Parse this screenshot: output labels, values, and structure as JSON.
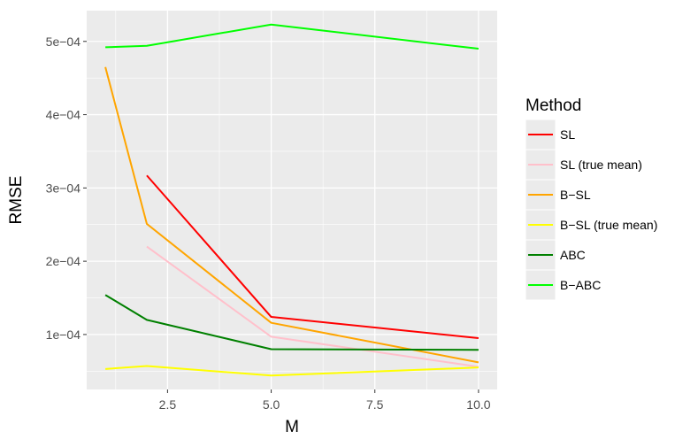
{
  "chart_data": {
    "type": "line",
    "xlabel": "M",
    "ylabel": "RMSE",
    "xlim": [
      0.55,
      10.45
    ],
    "ylim": [
      2.5e-05,
      0.000542
    ],
    "x_ticks": [
      2.5,
      5.0,
      7.5,
      10.0
    ],
    "x_tick_labels": [
      "2.5",
      "5.0",
      "7.5",
      "10.0"
    ],
    "y_ticks": [
      0.0001,
      0.0002,
      0.0003,
      0.0004,
      0.0005
    ],
    "y_tick_labels": [
      "1e−04",
      "2e−04",
      "3e−04",
      "4e−04",
      "5e−04"
    ],
    "grid": true,
    "legend": {
      "title": "Method",
      "position": "right"
    },
    "series": [
      {
        "name": "SL",
        "color": "#ff0000",
        "x": [
          2,
          5,
          10
        ],
        "y": [
          0.000317,
          0.000124,
          9.5e-05
        ]
      },
      {
        "name": "SL (true mean)",
        "color": "#ffc0cb",
        "x": [
          2,
          5,
          10
        ],
        "y": [
          0.00022,
          9.7e-05,
          5.6e-05
        ]
      },
      {
        "name": "B−SL",
        "color": "#ffa500",
        "x": [
          1,
          2,
          5,
          10
        ],
        "y": [
          0.000465,
          0.000251,
          0.000116,
          6.2e-05
        ]
      },
      {
        "name": "B−SL (true mean)",
        "color": "#ffff00",
        "x": [
          1,
          2,
          5,
          10
        ],
        "y": [
          5.3e-05,
          5.7e-05,
          4.4e-05,
          5.5e-05
        ]
      },
      {
        "name": "ABC",
        "color": "#008000",
        "x": [
          1,
          2,
          5,
          10
        ],
        "y": [
          0.000154,
          0.00012,
          8e-05,
          7.9e-05
        ]
      },
      {
        "name": "B−ABC",
        "color": "#00ff00",
        "x": [
          1,
          2,
          5,
          10
        ],
        "y": [
          0.000492,
          0.000494,
          0.000523,
          0.00049
        ]
      }
    ]
  }
}
